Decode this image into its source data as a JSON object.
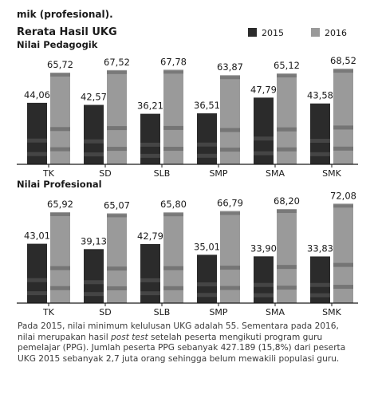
{
  "intro_fragment": "mik (profesional).",
  "figure_title": "Rerata Hasil UKG",
  "legend": [
    {
      "label": "2015",
      "color": "#2b2b2b"
    },
    {
      "label": "2016",
      "color": "#9a9a9a"
    }
  ],
  "colors": {
    "bar_2015": "#2b2b2b",
    "bar_2016": "#9a9a9a",
    "axis": "#1a1a1a"
  },
  "chart_data": [
    {
      "type": "bar",
      "title": "Nilai Pedagogik",
      "categories": [
        "TK",
        "SD",
        "SLB",
        "SMP",
        "SMA",
        "SMK"
      ],
      "series": [
        {
          "name": "2015",
          "values": [
            44.06,
            42.57,
            36.21,
            36.51,
            47.79,
            43.58
          ]
        },
        {
          "name": "2016",
          "values": [
            65.72,
            67.52,
            67.78,
            63.87,
            65.12,
            68.52
          ]
        }
      ],
      "value_labels": [
        [
          "44,06",
          "42,57",
          "36,21",
          "36,51",
          "47,79",
          "43,58"
        ],
        [
          "65,72",
          "67,52",
          "67,78",
          "63,87",
          "65,12",
          "68,52"
        ]
      ],
      "ylim": [
        0,
        80
      ],
      "grid": false,
      "legend_position": "top-right"
    },
    {
      "type": "bar",
      "title": "Nilai Profesional",
      "categories": [
        "TK",
        "SD",
        "SLB",
        "SMP",
        "SMA",
        "SMK"
      ],
      "series": [
        {
          "name": "2015",
          "values": [
            43.01,
            39.13,
            42.79,
            35.01,
            33.9,
            33.83
          ]
        },
        {
          "name": "2016",
          "values": [
            65.92,
            65.07,
            65.8,
            66.79,
            68.2,
            72.08
          ]
        }
      ],
      "value_labels": [
        [
          "43,01",
          "39,13",
          "42,79",
          "35,01",
          "33,90",
          "33,83"
        ],
        [
          "65,92",
          "65,07",
          "65,80",
          "66,79",
          "68,20",
          "72,08"
        ]
      ],
      "ylim": [
        0,
        80
      ],
      "grid": false,
      "legend_position": "top-right"
    }
  ],
  "caption": {
    "before_italic": "Pada 2015, nilai minimum kelulusan UKG adalah 55. Sementara pada 2016, nilai merupakan hasil ",
    "italic": "post test",
    "after_italic": " setelah peserta mengikuti program guru pemelajar (PPG). Jumlah peserta PPG sebanyak 427.189 (15,8%) dari peserta UKG 2015 sebanyak 2,7 juta orang sehingga belum mewakili populasi guru."
  }
}
